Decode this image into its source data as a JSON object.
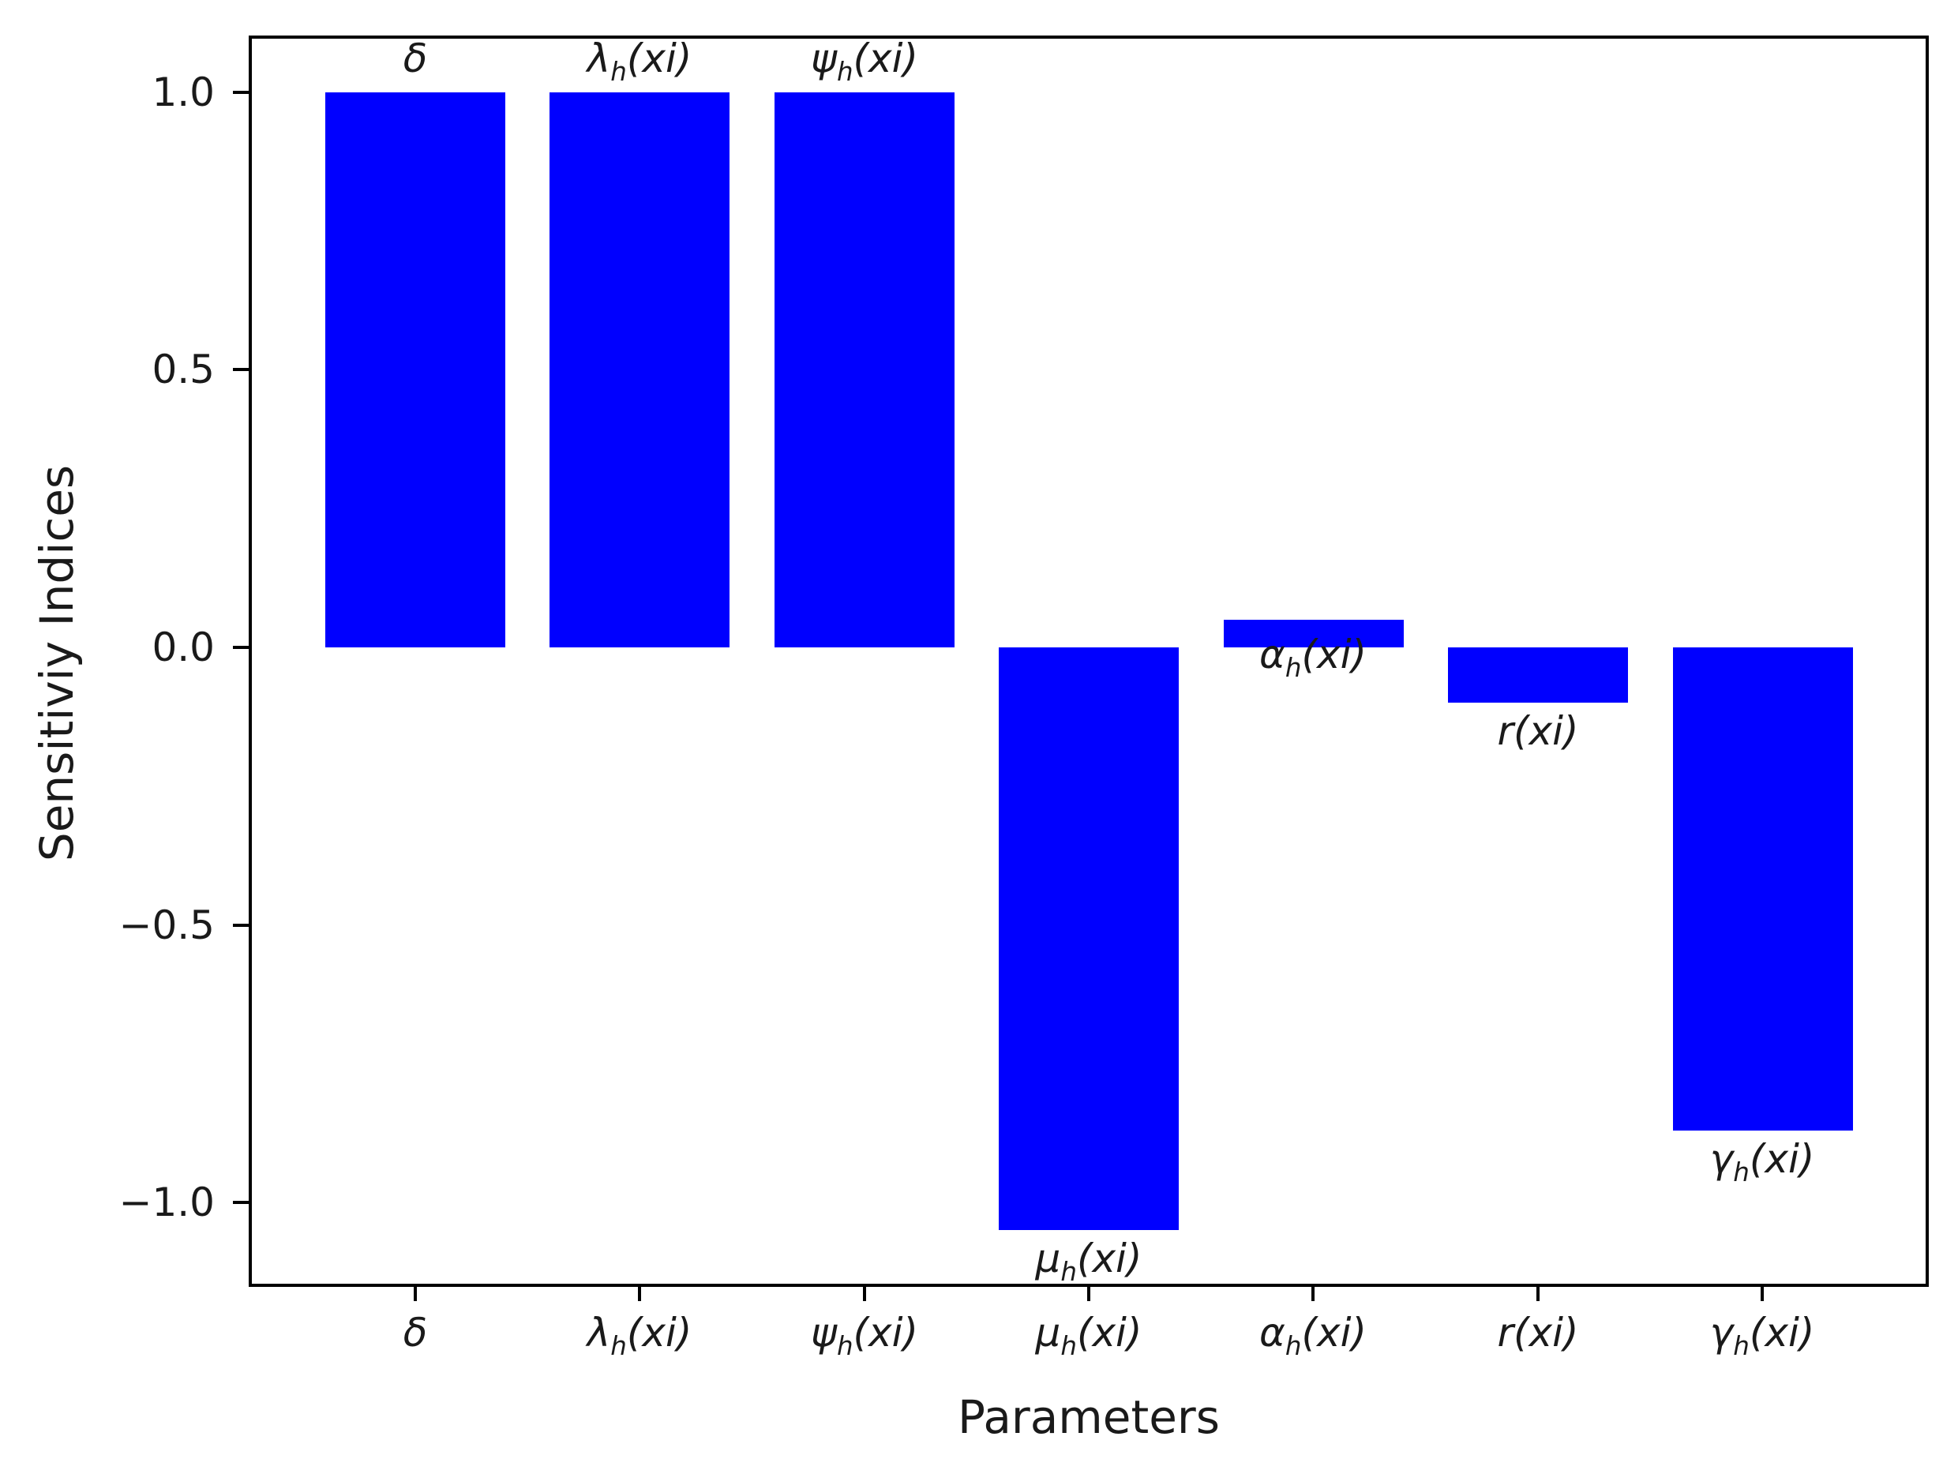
{
  "chart_data": {
    "type": "bar",
    "title": "",
    "xlabel": "Parameters",
    "ylabel": "Sensitiviy Indices",
    "bar_color": "#0000ff",
    "text_color": "#1a1a1a",
    "axis_color": "#000000",
    "categories": [
      {
        "slug": "delta",
        "sym": "δ",
        "sub": "",
        "suffix": ""
      },
      {
        "slug": "lambda-h",
        "sym": "λ",
        "sub": "h",
        "suffix": "(xi)"
      },
      {
        "slug": "psi-h",
        "sym": "ψ",
        "sub": "h",
        "suffix": "(xi)"
      },
      {
        "slug": "mu-h",
        "sym": "μ",
        "sub": "h",
        "suffix": "(xi)"
      },
      {
        "slug": "alpha-h",
        "sym": "α",
        "sub": "h",
        "suffix": "(xi)"
      },
      {
        "slug": "r",
        "sym": "r",
        "sub": "",
        "suffix": "(xi)"
      },
      {
        "slug": "gamma-h",
        "sym": "γ",
        "sub": "h",
        "suffix": "(xi)"
      }
    ],
    "values": [
      1.0,
      1.0,
      1.0,
      -1.05,
      0.05,
      -0.1,
      -0.87
    ],
    "bar_label_placement": [
      "above",
      "above",
      "above",
      "below",
      "overlap-top",
      "below",
      "below"
    ],
    "ytick_values": [
      1.0,
      0.5,
      0.0,
      -0.5,
      -1.0
    ],
    "ytick_labels": [
      "1.0",
      "0.5",
      "0.0",
      "−0.5",
      "−1.0"
    ],
    "ylim": [
      -1.152,
      1.102
    ],
    "xlim_categories": [
      -0.74,
      6.74
    ],
    "bar_width_fraction": 0.8,
    "grid": false,
    "legend": null
  }
}
